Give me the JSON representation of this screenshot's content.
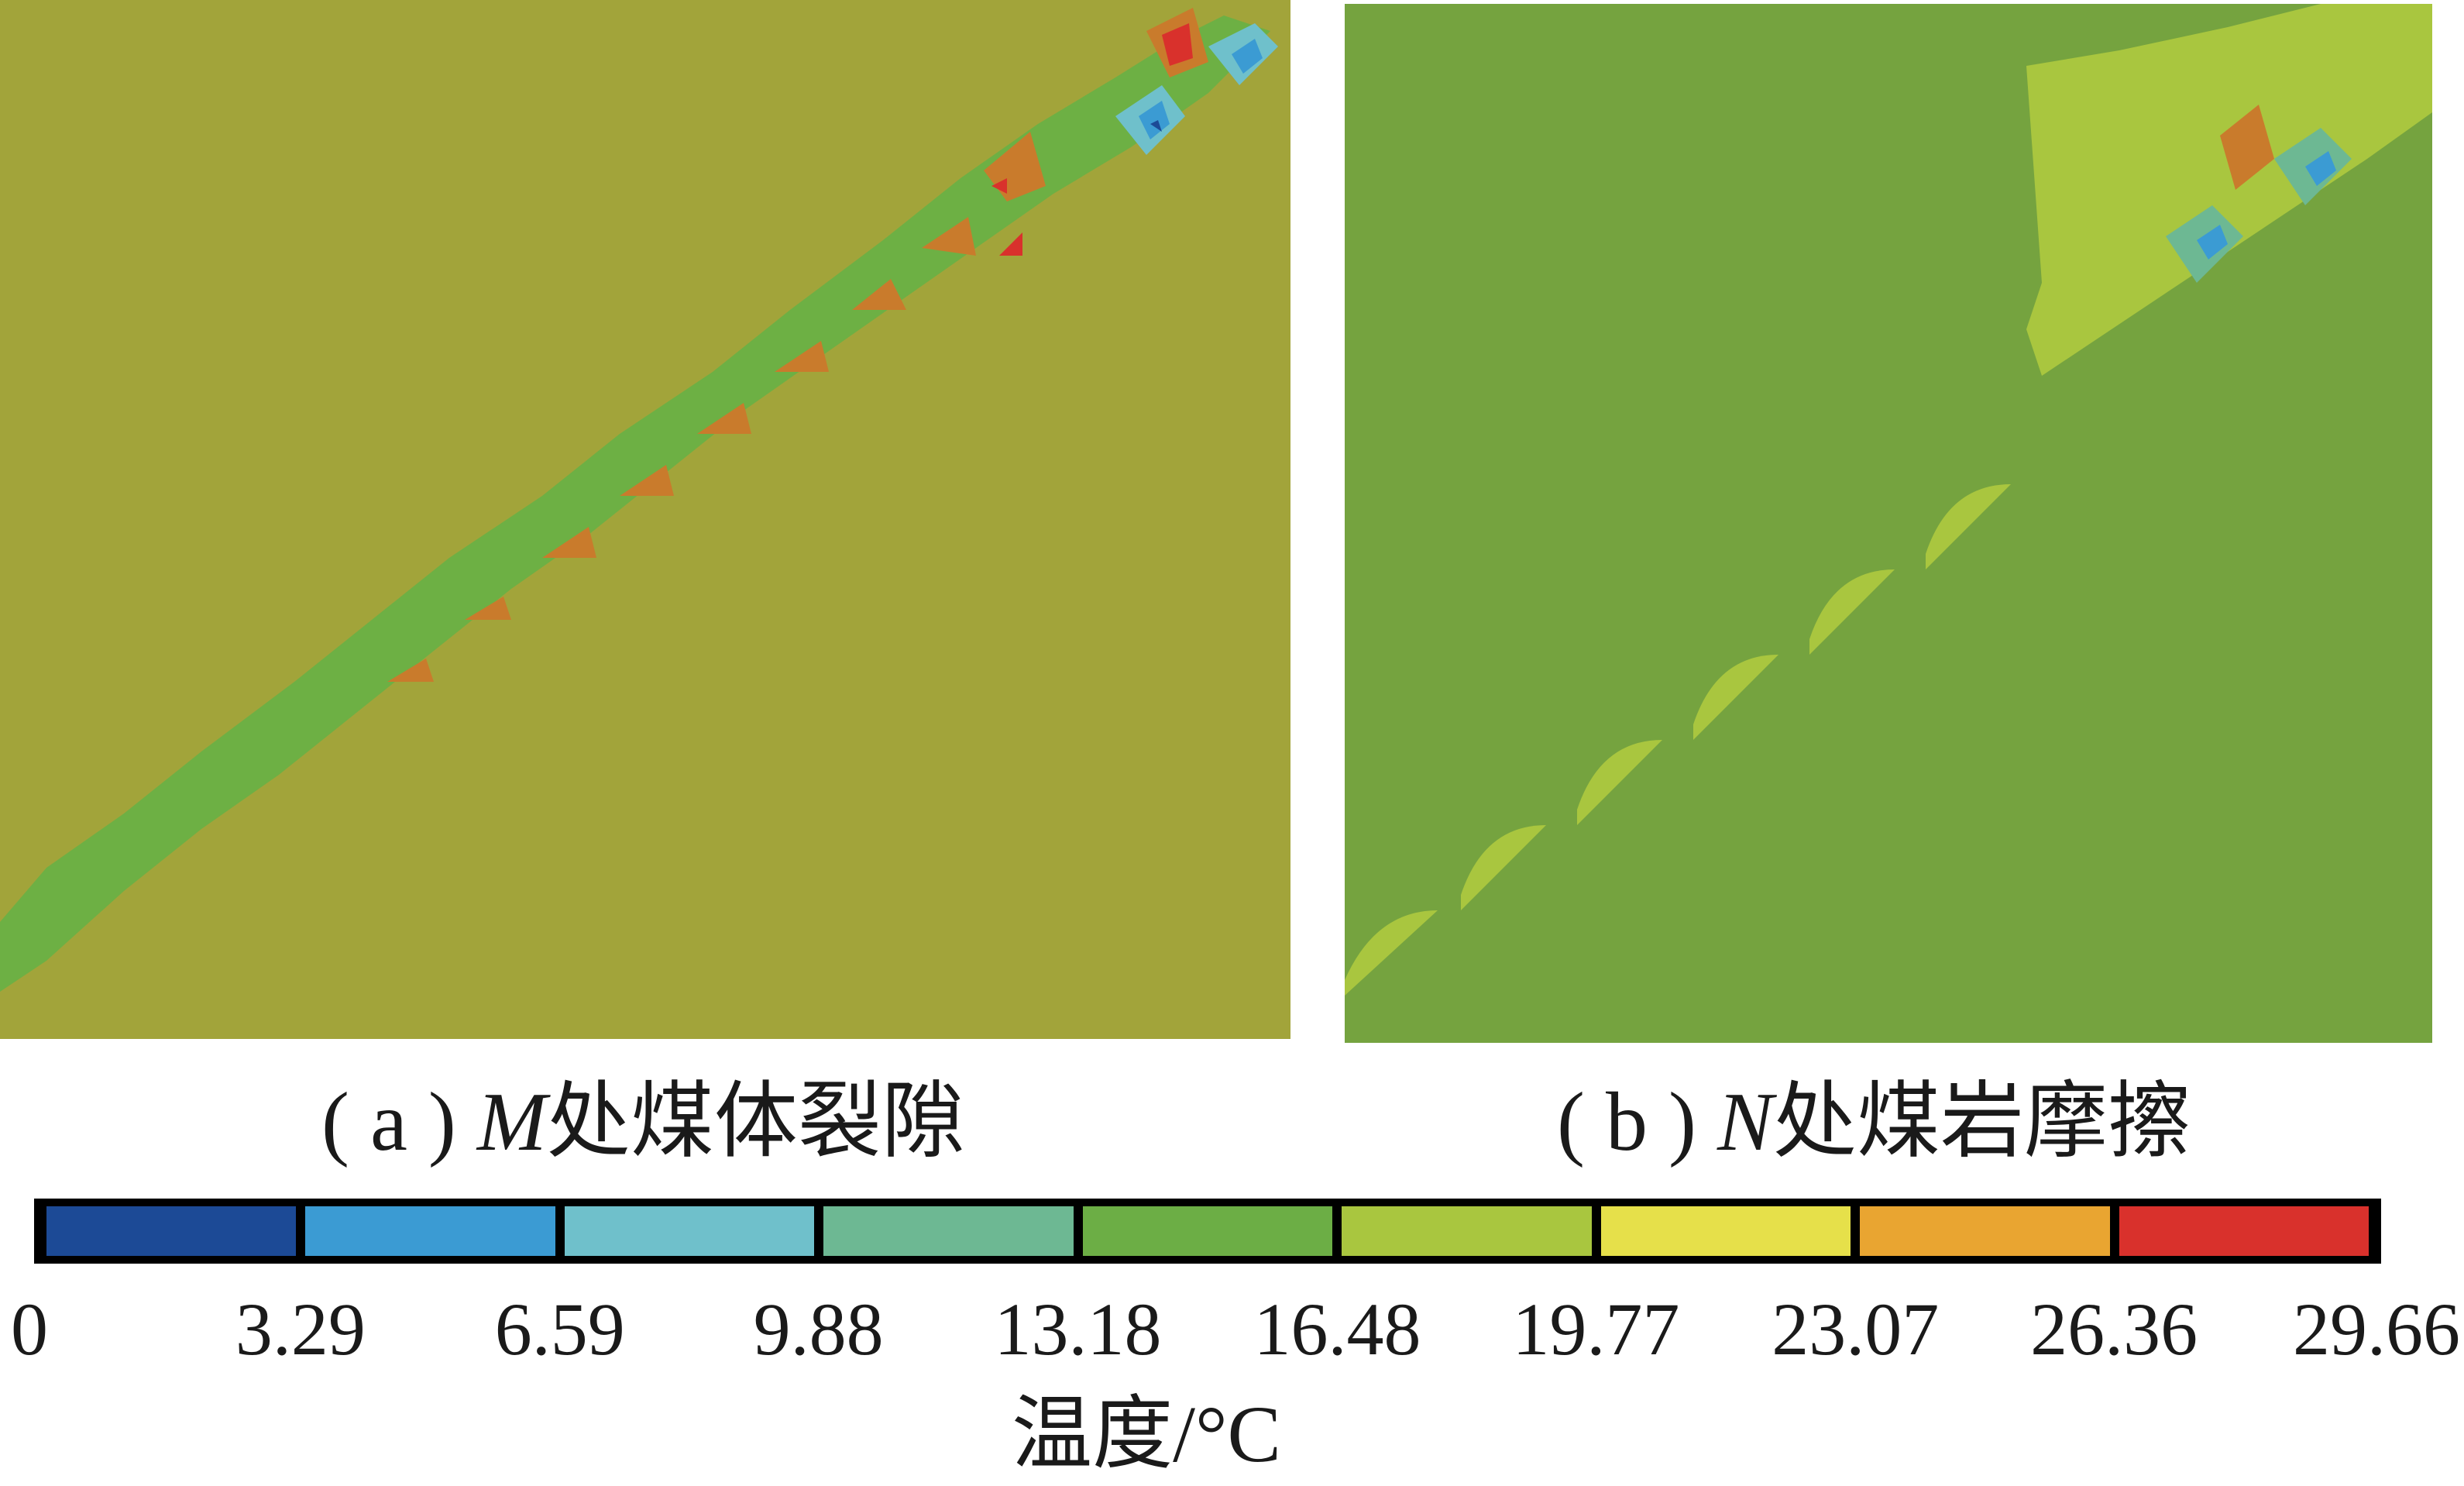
{
  "panels": [
    {
      "id": "a",
      "prefix": "( a ) ",
      "letter": "M",
      "text": "处煤体裂隙"
    },
    {
      "id": "b",
      "prefix": "( b ) ",
      "letter": "N",
      "text": "处煤岩摩擦"
    }
  ],
  "chart_data": {
    "type": "heatmap",
    "colorbar": {
      "title": "温度/°C",
      "ticks": [
        "0",
        "3.29",
        "6.59",
        "9.88",
        "13.18",
        "16.48",
        "19.77",
        "23.07",
        "26.36",
        "29.66"
      ],
      "tick_values": [
        0,
        3.29,
        6.59,
        9.88,
        13.18,
        16.48,
        19.77,
        23.07,
        26.36,
        29.66
      ],
      "colors": [
        "#1c4a96",
        "#3b9bd3",
        "#6fc0cb",
        "#6db893",
        "#6cae45",
        "#a9c63f",
        "#e6e04a",
        "#e9a531",
        "#d9312c"
      ]
    },
    "panel_a": {
      "background_color": "#a2a43a"
    },
    "panel_b": {
      "background_color": "#75a33f"
    }
  }
}
